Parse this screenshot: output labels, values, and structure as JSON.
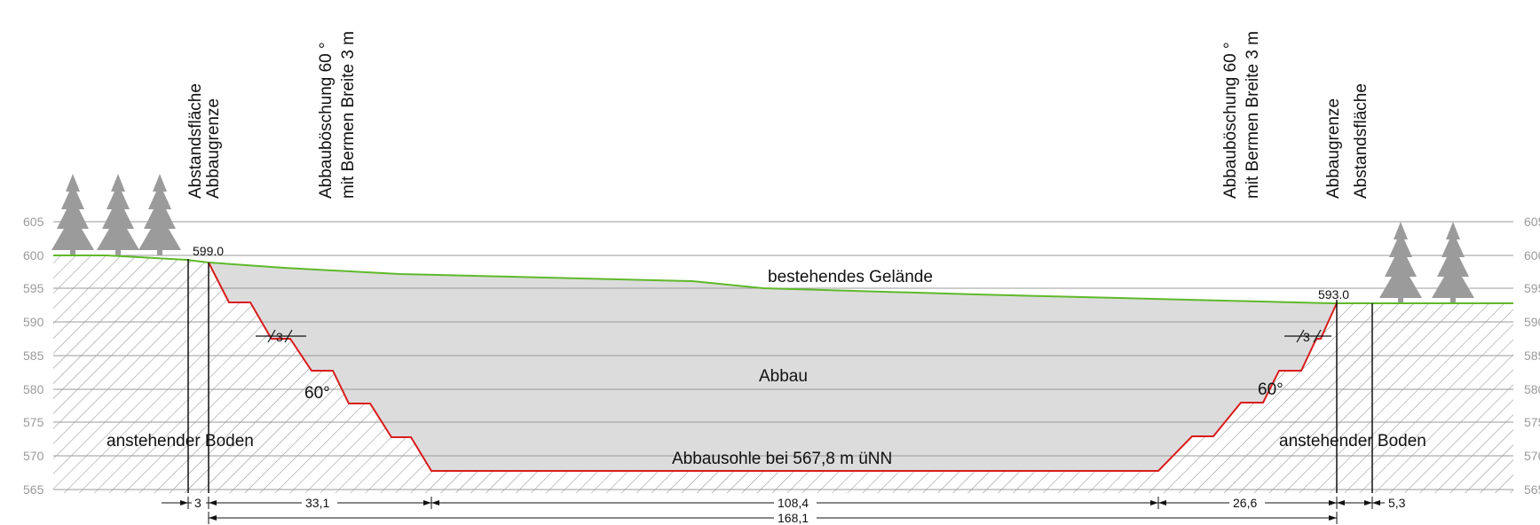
{
  "elevation_ticks": [
    "605",
    "600",
    "595",
    "590",
    "585",
    "580",
    "575",
    "570",
    "565"
  ],
  "labels": {
    "left_buffer": "Abstandsfläche",
    "left_limit": "Abbaugrenze",
    "left_slope_line1": "Abbauböschung 60 °",
    "left_slope_line2": "mit Bermen Breite 3 m",
    "right_slope_line1": "Abbauböschung 60 °",
    "right_slope_line2": "mit Bermen Breite 3 m",
    "right_limit": "Abbaugrenze",
    "right_buffer": "Abstandsfläche",
    "terrain": "bestehendes Gelände",
    "pit": "Abbau",
    "floor": "Abbausohle bei 567,8 m üNN",
    "soil_left": "anstehender Boden",
    "soil_right": "anstehender Boden",
    "angle_left": "60°",
    "angle_right": "60°",
    "berm_left": "3",
    "berm_right": "3",
    "elev_left": "599.0",
    "elev_right": "593.0"
  },
  "dimensions": {
    "d1": "3",
    "d2": "33,1",
    "d3": "108,4",
    "d4": "26,6",
    "d5": "5,3",
    "total": "168,1"
  },
  "colors": {
    "terrain": "#5fb92a",
    "slope": "#d91c1c",
    "pit_fill": "#dcdcdc",
    "grid": "#9a9a9a",
    "tree": "#9b9b9b",
    "hatch": "#8a8a8a"
  }
}
